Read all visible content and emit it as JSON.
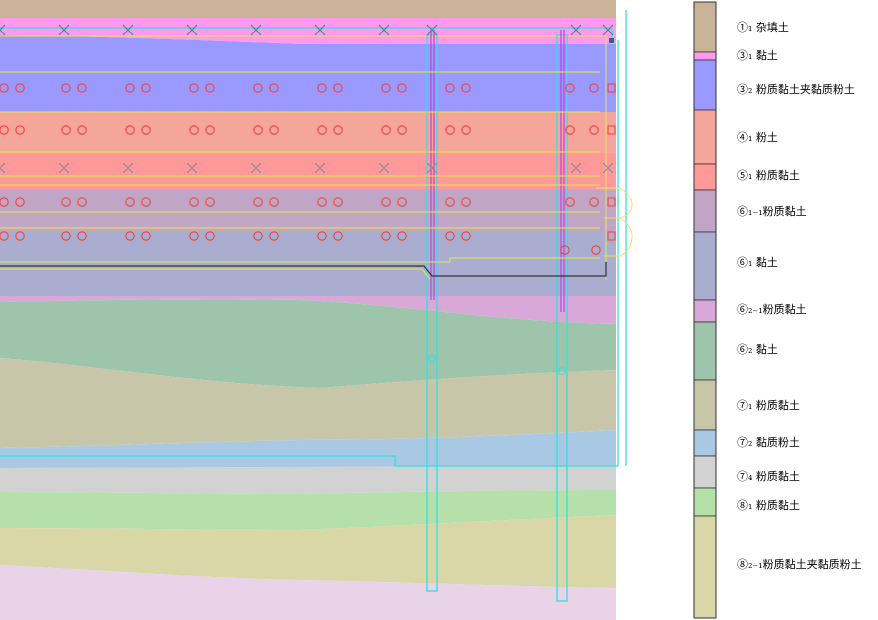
{
  "diagram": {
    "strata": [
      {
        "id": "s1",
        "color": "#c9b49a"
      },
      {
        "id": "s2",
        "color": "#ff99ee"
      },
      {
        "id": "s3",
        "color": "#9999ff"
      },
      {
        "id": "s4",
        "color": "#f4a69b"
      },
      {
        "id": "s5",
        "color": "#ff9999"
      },
      {
        "id": "s6",
        "color": "#c0a6c4"
      },
      {
        "id": "s7",
        "color": "#a9aed0"
      },
      {
        "id": "s8",
        "color": "#d8a8d8"
      },
      {
        "id": "s9",
        "color": "#9fc4ac"
      },
      {
        "id": "s10",
        "color": "#c7c6a9"
      },
      {
        "id": "s11",
        "color": "#a9c8e4"
      },
      {
        "id": "s12",
        "color": "#d2d2d2"
      },
      {
        "id": "s13",
        "color": "#b6e0aa"
      },
      {
        "id": "s14",
        "color": "#d9d7a8"
      },
      {
        "id": "s15",
        "color": "#e8d3e8"
      }
    ]
  },
  "legend": {
    "items": [
      {
        "label": "①₁ 杂填土",
        "color": "#c9b49a"
      },
      {
        "label": "③₁ 黏土",
        "color": "#ff99ee"
      },
      {
        "label": "③₂ 粉质黏土夹黏质粉土",
        "color": "#9999ff"
      },
      {
        "label": "④₁ 粉土",
        "color": "#f4a69b"
      },
      {
        "label": "⑤₁ 粉质黏土",
        "color": "#ff9999"
      },
      {
        "label": "⑥₁₋₁粉质黏土",
        "color": "#c0a6c4"
      },
      {
        "label": "⑥₁ 黏土",
        "color": "#a9aed0"
      },
      {
        "label": "⑥₂₋₁粉质黏土",
        "color": "#d8a8d8"
      },
      {
        "label": "⑥₂ 黏土",
        "color": "#9fc4ac"
      },
      {
        "label": "⑦₁ 粉质黏土",
        "color": "#c7c6a9"
      },
      {
        "label": "⑦₂ 黏质粉土",
        "color": "#a9c8e4"
      },
      {
        "label": "⑦₄ 粉质黏土",
        "color": "#d2d2d2"
      },
      {
        "label": "⑧₁ 粉质黏土",
        "color": "#b6e0aa"
      },
      {
        "label": "⑧₂₋₁粉质黏土夹黏质粉土",
        "color": "#d9d7a8"
      }
    ]
  }
}
